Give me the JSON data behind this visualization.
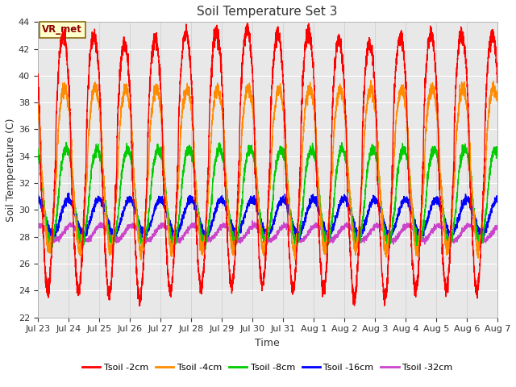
{
  "title": "Soil Temperature Set 3",
  "xlabel": "Time",
  "ylabel": "Soil Temperature (C)",
  "ylim": [
    22,
    44
  ],
  "yticks": [
    22,
    24,
    26,
    28,
    30,
    32,
    34,
    36,
    38,
    40,
    42,
    44
  ],
  "xtick_labels": [
    "Jul 23",
    "Jul 24",
    "Jul 25",
    "Jul 26",
    "Jul 27",
    "Jul 28",
    "Jul 29",
    "Jul 30",
    "Jul 31",
    "Aug 1",
    "Aug 2",
    "Aug 3",
    "Aug 4",
    "Aug 5",
    "Aug 6",
    "Aug 7"
  ],
  "series_colors": [
    "#ff0000",
    "#ff8c00",
    "#00cc00",
    "#0000ff",
    "#cc44cc"
  ],
  "series_labels": [
    "Tsoil -2cm",
    "Tsoil -4cm",
    "Tsoil -8cm",
    "Tsoil -16cm",
    "Tsoil -32cm"
  ],
  "bg_light": "#e8e8e8",
  "bg_dark": "#d0d0d0",
  "annotation_text": "VR_met",
  "annotation_bg": "#ffffcc",
  "annotation_border": "#8b6914",
  "num_days": 15,
  "points_per_day": 288
}
